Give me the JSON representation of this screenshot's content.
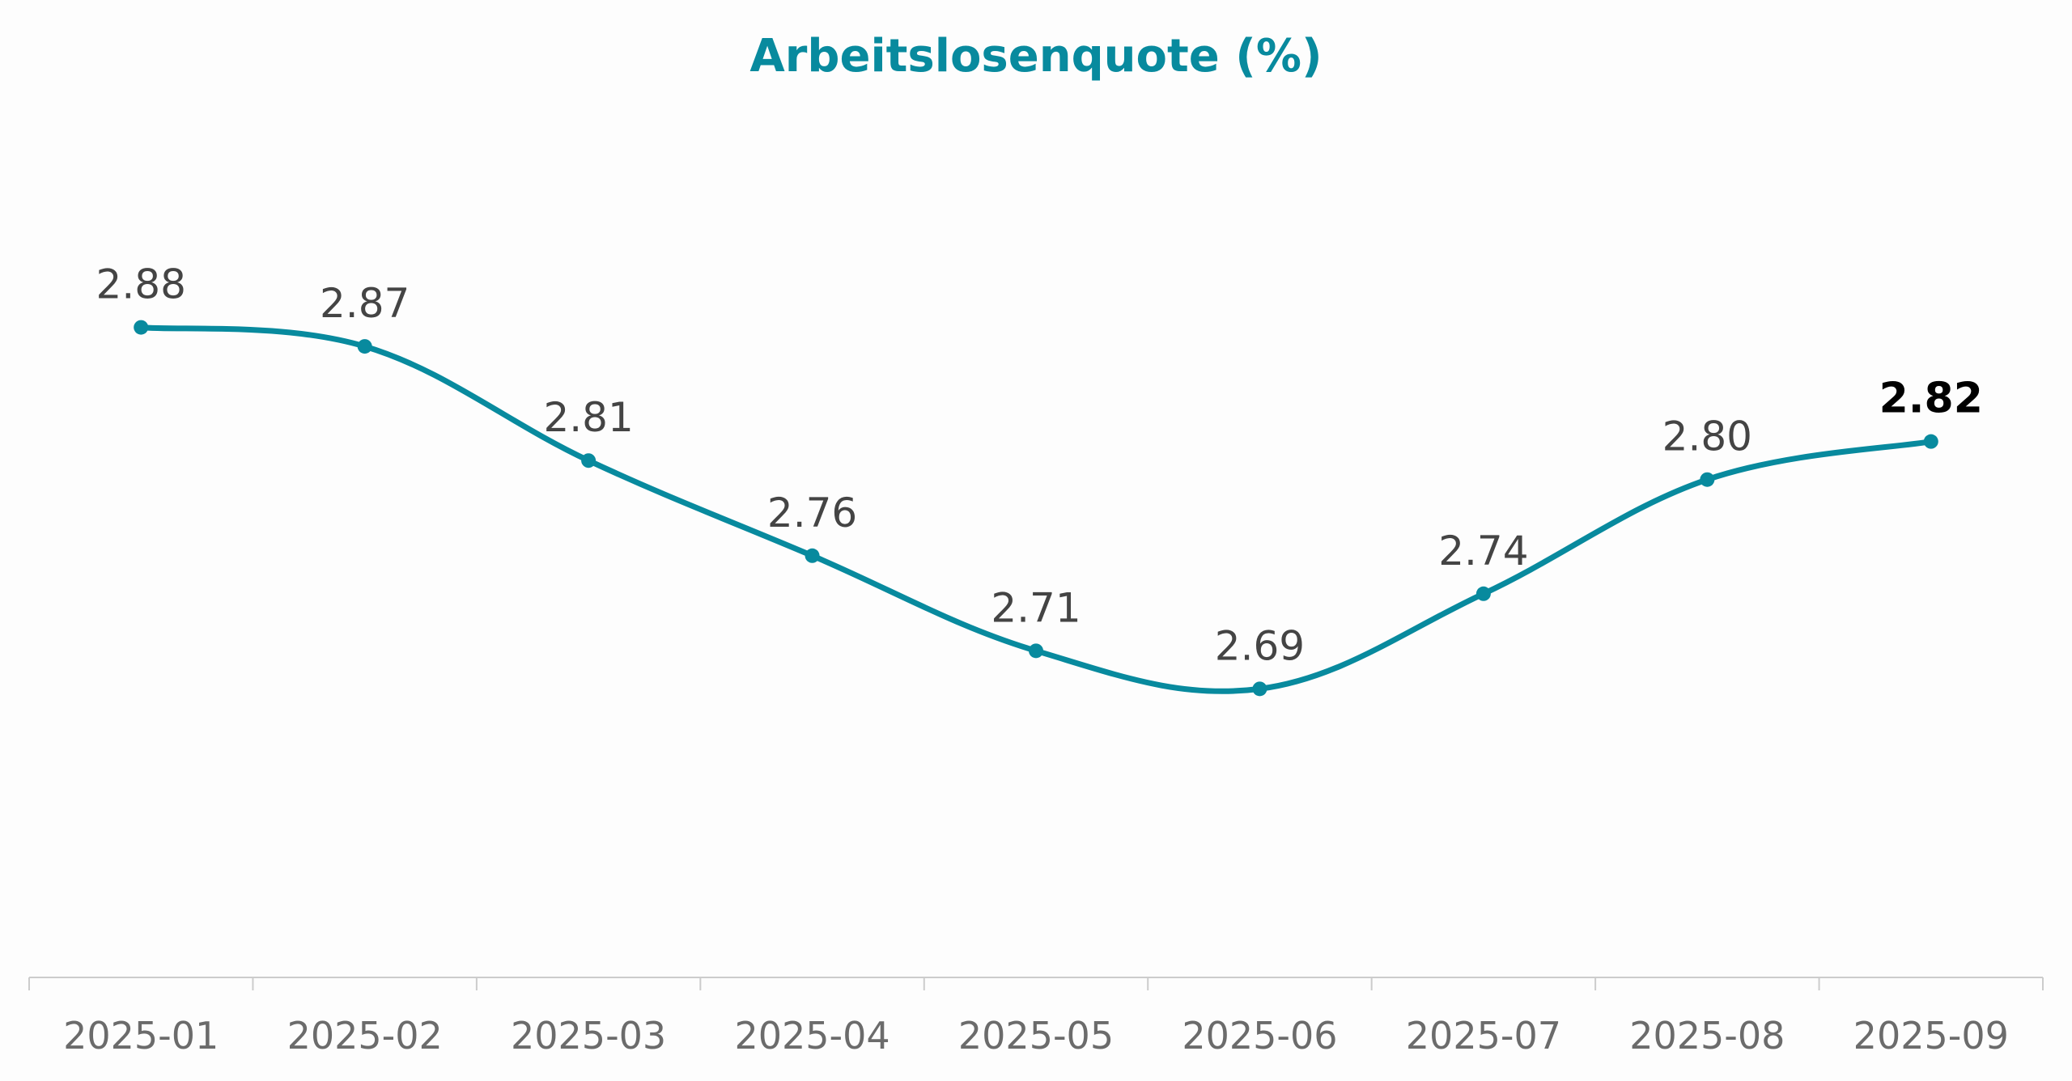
{
  "chart_data": {
    "type": "line",
    "title": "Arbeitslosenquote (%)",
    "categories": [
      "2025-01",
      "2025-02",
      "2025-03",
      "2025-04",
      "2025-05",
      "2025-06",
      "2025-07",
      "2025-08",
      "2025-09"
    ],
    "series": [
      {
        "values": [
          2.88,
          2.87,
          2.81,
          2.76,
          2.71,
          2.69,
          2.74,
          2.8,
          2.82
        ]
      }
    ],
    "data_labels": [
      "2.88",
      "2.87",
      "2.81",
      "2.76",
      "2.71",
      "2.69",
      "2.74",
      "2.80",
      "2.82"
    ],
    "highlight_last_label": true,
    "xlabel": "",
    "ylabel": "",
    "ylim": [
      2.58,
      2.95
    ],
    "grid": false,
    "legend": "none",
    "y_axis_visible": false,
    "line_style": "smooth",
    "colors": {
      "title": "#088a9e",
      "line": "#088a9e",
      "axis": "#cccccc",
      "tick_label": "#6b6b6b",
      "data_label": "#444444",
      "highlight_label": "#000000"
    }
  }
}
